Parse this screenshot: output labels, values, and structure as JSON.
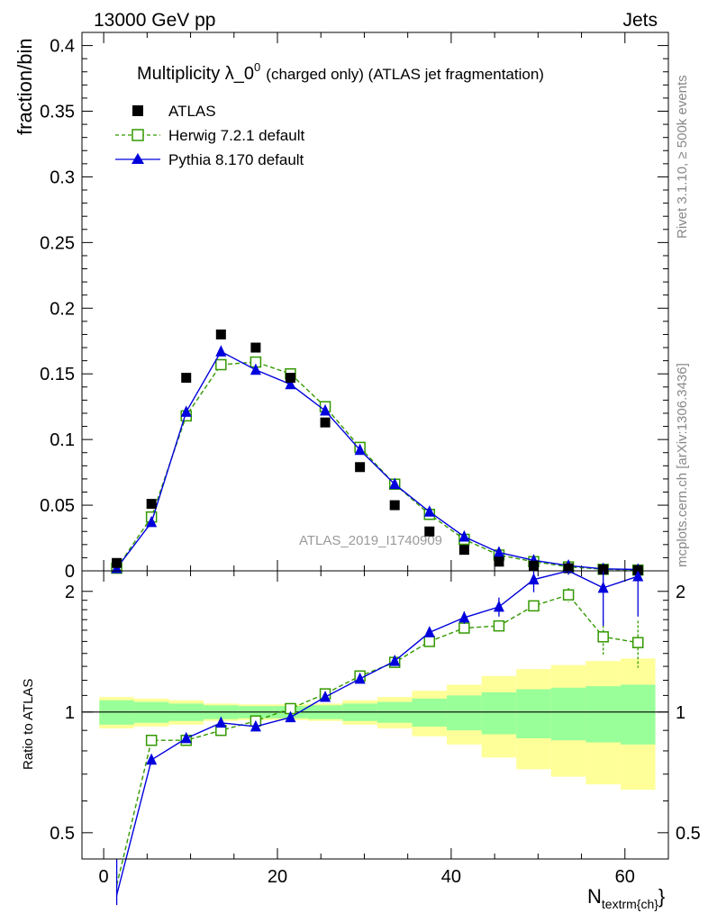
{
  "header": {
    "left": "13000 GeV pp",
    "right": "Jets"
  },
  "side_labels": {
    "rivet": "Rivet 3.1.10, ≥ 500k events",
    "mcplots": "mcplots.cern.ch [arXiv:1306.3436]"
  },
  "colors": {
    "data": "#000000",
    "herwig": "#339900",
    "pythia": "#0000dd",
    "band_inner": "#99ff99",
    "band_outer": "#ffff99"
  },
  "chart_data": [
    {
      "type": "scatter",
      "title_main": "Multiplicity λ_0",
      "title_sup": "0",
      "title_rest": "(charged only) (ATLAS jet fragmentation)",
      "ylabel": "fraction/bin",
      "xlabel": "N",
      "xlabel_sub": "textrm{ch}",
      "xlabel_tail": "}",
      "watermark": "ATLAS_2019_I1740909",
      "xlim": [
        -2.5,
        65
      ],
      "ylim": [
        0,
        0.41
      ],
      "y_ticks": [
        0,
        0.05,
        0.1,
        0.15,
        0.2,
        0.25,
        0.3,
        0.35,
        0.4
      ],
      "y_tick_labels": [
        "0",
        "0.05",
        "0.1",
        "0.15",
        "0.2",
        "0.25",
        "0.3",
        "0.35",
        "0.4"
      ],
      "x": [
        1.5,
        5.5,
        9.5,
        13.5,
        17.5,
        21.5,
        25.5,
        29.5,
        33.5,
        37.5,
        41.5,
        45.5,
        49.5,
        53.5,
        57.5,
        61.5
      ],
      "legend_position": "top-left",
      "series": [
        {
          "name": "ATLAS",
          "key": "atlas",
          "values": [
            0.006,
            0.051,
            0.147,
            0.18,
            0.17,
            0.147,
            0.113,
            0.079,
            0.05,
            0.03,
            0.016,
            0.007,
            0.004,
            0.002,
            0.001,
            0.0005
          ]
        },
        {
          "name": "Herwig 7.2.1 default",
          "key": "herwig",
          "values": [
            0.002,
            0.041,
            0.118,
            0.157,
            0.159,
            0.15,
            0.125,
            0.094,
            0.066,
            0.043,
            0.024,
            0.012,
            0.007,
            0.003,
            0.0012,
            0.0006
          ]
        },
        {
          "name": "Pythia 8.170 default",
          "key": "pythia",
          "values": [
            0.002,
            0.037,
            0.121,
            0.167,
            0.153,
            0.142,
            0.122,
            0.092,
            0.066,
            0.045,
            0.026,
            0.014,
            0.008,
            0.004,
            0.0015,
            0.001
          ]
        }
      ]
    },
    {
      "type": "line",
      "ylabel": "Ratio to ATLAS",
      "xlim": [
        -2.5,
        65
      ],
      "ylim": [
        0.43,
        2.25
      ],
      "log_y": true,
      "y_ticks": [
        0.5,
        1,
        2
      ],
      "y_tick_labels": [
        "0.5",
        "1",
        "2"
      ],
      "x_ticks": [
        0,
        20,
        40,
        60
      ],
      "x_tick_labels": [
        "0",
        "20",
        "40",
        "60"
      ],
      "x": [
        1.5,
        5.5,
        9.5,
        13.5,
        17.5,
        21.5,
        25.5,
        29.5,
        33.5,
        37.5,
        41.5,
        45.5,
        49.5,
        53.5,
        57.5,
        61.5
      ],
      "bin_edges": [
        -0.5,
        3.5,
        7.5,
        11.5,
        15.5,
        19.5,
        23.5,
        27.5,
        31.5,
        35.5,
        39.5,
        43.5,
        47.5,
        51.5,
        55.5,
        59.5,
        63.5
      ],
      "band_inner": [
        0.07,
        0.06,
        0.05,
        0.04,
        0.035,
        0.035,
        0.04,
        0.05,
        0.06,
        0.08,
        0.1,
        0.12,
        0.14,
        0.15,
        0.16,
        0.17
      ],
      "band_outer": [
        0.09,
        0.08,
        0.07,
        0.05,
        0.045,
        0.045,
        0.05,
        0.07,
        0.09,
        0.13,
        0.17,
        0.23,
        0.28,
        0.31,
        0.34,
        0.36
      ],
      "series": [
        {
          "name": "Herwig 7.2.1 default",
          "key": "herwig",
          "values": [
            0.37,
            0.85,
            0.85,
            0.9,
            0.95,
            1.02,
            1.11,
            1.23,
            1.33,
            1.5,
            1.62,
            1.64,
            1.84,
            1.96,
            1.54,
            1.49
          ],
          "errors": [
            0.03,
            0.01,
            0.01,
            0.01,
            0.01,
            0.01,
            0.01,
            0.01,
            0.02,
            0.02,
            0.03,
            0.04,
            0.05,
            0.08,
            0.15,
            0.2
          ]
        },
        {
          "name": "Pythia 8.170 default",
          "key": "pythia",
          "values": [
            0.3,
            0.76,
            0.86,
            0.94,
            0.92,
            0.97,
            1.09,
            1.21,
            1.34,
            1.58,
            1.72,
            1.83,
            2.14,
            2.45,
            2.04,
            2.18
          ],
          "errors": [
            0.03,
            0.02,
            0.01,
            0.01,
            0.01,
            0.01,
            0.01,
            0.02,
            0.02,
            0.03,
            0.06,
            0.1,
            0.15,
            0.25,
            0.4,
            0.45
          ]
        }
      ]
    }
  ]
}
